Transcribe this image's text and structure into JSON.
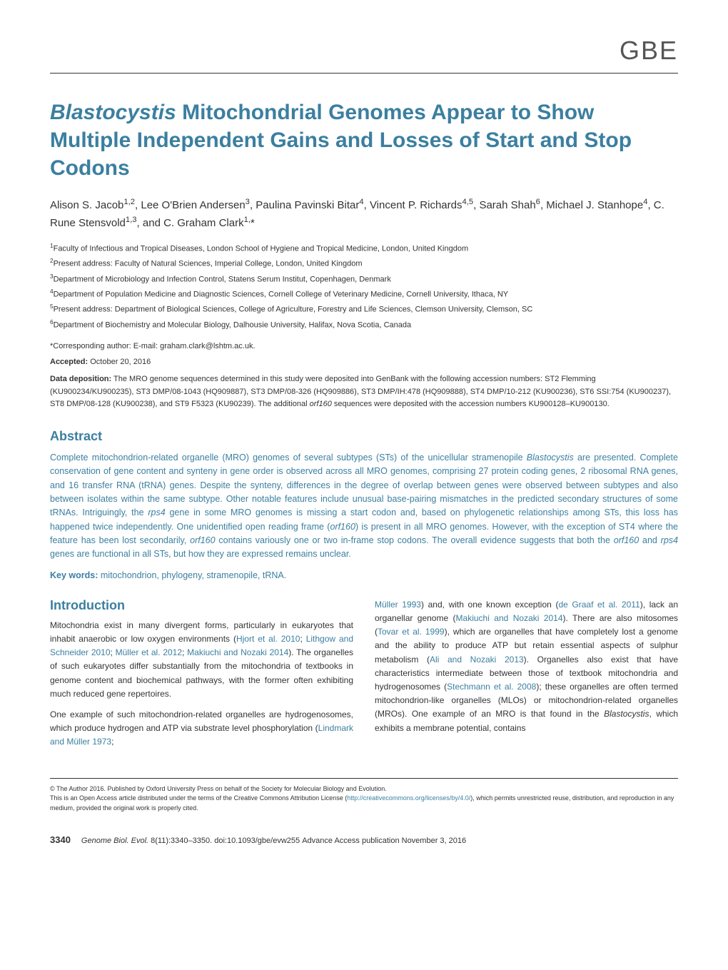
{
  "journal_abbrev": "GBE",
  "title": "Blastocystis Mitochondrial Genomes Appear to Show Multiple Independent Gains and Losses of Start and Stop Codons",
  "authors_html": "Alison S. Jacob<sup>1,2</sup>, Lee O'Brien Andersen<sup>3</sup>, Paulina Pavinski Bitar<sup>4</sup>, Vincent P. Richards<sup>4,5</sup>, Sarah Shah<sup>6</sup>, Michael J. Stanhope<sup>4</sup>, C. Rune Stensvold<sup>1,3</sup>, and C. Graham Clark<sup>1,</sup>*",
  "affiliations": [
    "<sup>1</sup>Faculty of Infectious and Tropical Diseases, London School of Hygiene and Tropical Medicine, London, United Kingdom",
    "<sup>2</sup>Present address: Faculty of Natural Sciences, Imperial College, London, United Kingdom",
    "<sup>3</sup>Department of Microbiology and Infection Control, Statens Serum Institut, Copenhagen, Denmark",
    "<sup>4</sup>Department of Population Medicine and Diagnostic Sciences, Cornell College of Veterinary Medicine, Cornell University, Ithaca, NY",
    "<sup>5</sup>Present address: Department of Biological Sciences, College of Agriculture, Forestry and Life Sciences, Clemson University, Clemson, SC",
    "<sup>6</sup>Department of Biochemistry and Molecular Biology, Dalhousie University, Halifax, Nova Scotia, Canada"
  ],
  "corresponding": "*Corresponding author: E-mail: graham.clark@lshtm.ac.uk.",
  "accepted_label": "Accepted:",
  "accepted_date": "October 20, 2016",
  "data_deposition_label": "Data deposition:",
  "data_deposition_text": "The MRO genome sequences determined in this study were deposited into GenBank with the following accession numbers: ST2 Flemming (KU900234/KU900235), ST3 DMP/08-1043 (HQ909887), ST3 DMP/08-326 (HQ909886), ST3 DMP/IH:478 (HQ909888), ST4 DMP/10-212 (KU900236), ST6 SSI:754 (KU900237), ST8 DMP/08-128 (KU900238), and ST9 F5323 (KU90239). The additional <span class=\"italic\">orf160</span> sequences were deposited with the accession numbers KU900128–KU900130.",
  "abstract_heading": "Abstract",
  "abstract_text": "Complete mitochondrion-related organelle (MRO) genomes of several subtypes (STs) of the unicellular stramenopile <span class=\"italic\">Blastocystis</span> are presented. Complete conservation of gene content and synteny in gene order is observed across all MRO genomes, comprising 27 protein coding genes, 2 ribosomal RNA genes, and 16 transfer RNA (tRNA) genes. Despite the synteny, differences in the degree of overlap between genes were observed between subtypes and also between isolates within the same subtype. Other notable features include unusual base-pairing mismatches in the predicted secondary structures of some tRNAs. Intriguingly, the <span class=\"italic\">rps4</span> gene in some MRO genomes is missing a start codon and, based on phylogenetic relationships among STs, this loss has happened twice independently. One unidentified open reading frame (<span class=\"italic\">orf160</span>) is present in all MRO genomes. However, with the exception of ST4 where the feature has been lost secondarily, <span class=\"italic\">orf160</span> contains variously one or two in-frame stop codons. The overall evidence suggests that both the <span class=\"italic\">orf160</span> and <span class=\"italic\">rps4</span> genes are functional in all STs, but how they are expressed remains unclear.",
  "keywords_label": "Key words:",
  "keywords_text": "mitochondrion, phylogeny, stramenopile, tRNA.",
  "introduction_heading": "Introduction",
  "intro_col1_p1": "Mitochondria exist in many divergent forms, particularly in eukaryotes that inhabit anaerobic or low oxygen environments (<span class=\"citation\">Hjort et al. 2010</span>; <span class=\"citation\">Lithgow and Schneider 2010</span>; <span class=\"citation\">Müller et al. 2012</span>; <span class=\"citation\">Makiuchi and Nozaki 2014</span>). The organelles of such eukaryotes differ substantially from the mitochondria of textbooks in genome content and biochemical pathways, with the former often exhibiting much reduced gene repertoires.",
  "intro_col1_p2": "One example of such mitochondrion-related organelles are hydrogenosomes, which produce hydrogen and ATP via substrate level phosphorylation (<span class=\"citation\">Lindmark and Müller 1973</span>;",
  "intro_col2_p1": "<span class=\"citation\">Müller 1993</span>) and, with one known exception (<span class=\"citation\">de Graaf et al. 2011</span>), lack an organellar genome (<span class=\"citation\">Makiuchi and Nozaki 2014</span>). There are also mitosomes (<span class=\"citation\">Tovar et al. 1999</span>), which are organelles that have completely lost a genome and the ability to produce ATP but retain essential aspects of sulphur metabolism (<span class=\"citation\">Ali and Nozaki 2013</span>). Organelles also exist that have characteristics intermediate between those of textbook mitochondria and hydrogenosomes (<span class=\"citation\">Stechmann et al. 2008</span>); these organelles are often termed mitochondrion-like organelles (MLOs) or mitochondrion-related organelles (MROs). One example of an MRO is that found in the <span class=\"italic\">Blastocystis</span>, which exhibits a membrane potential, contains",
  "copyright_text": "© The Author 2016. Published by Oxford University Press on behalf of the Society for Molecular Biology and Evolution.",
  "license_text": "This is an Open Access article distributed under the terms of the Creative Commons Attribution License (<span class=\"copyright-link\">http://creativecommons.org/licenses/by/4.0/</span>), which permits unrestricted reuse, distribution, and reproduction in any medium, provided the original work is properly cited.",
  "page_number": "3340",
  "journal_citation": "Genome Biol. Evol.",
  "volume_info": "8(11):3340–3350.",
  "doi": "doi:10.1093/gbe/evw255",
  "advance_access": "Advance Access publication November 3, 2016",
  "colors": {
    "accent": "#3b7fa0",
    "text": "#333333",
    "background": "#ffffff"
  }
}
